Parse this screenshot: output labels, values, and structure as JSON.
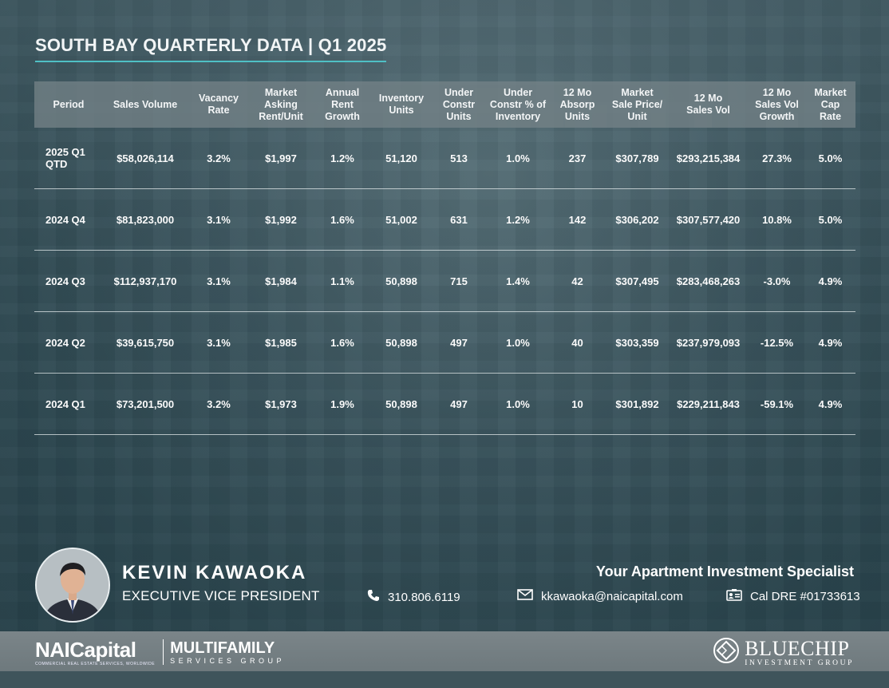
{
  "title": "SOUTH BAY QUARTERLY DATA | Q1 2025",
  "table": {
    "headers": [
      [
        "Period"
      ],
      [
        "Sales Volume"
      ],
      [
        "Vacancy",
        "Rate"
      ],
      [
        "Market",
        "Asking",
        "Rent/Unit"
      ],
      [
        "Annual",
        "Rent",
        "Growth"
      ],
      [
        "Inventory",
        "Units"
      ],
      [
        "Under",
        "Constr",
        "Units"
      ],
      [
        "Under",
        "Constr % of",
        "Inventory"
      ],
      [
        "12 Mo",
        "Absorp",
        "Units"
      ],
      [
        "Market",
        "Sale Price/",
        "Unit"
      ],
      [
        "12 Mo",
        "Sales Vol"
      ],
      [
        "12 Mo",
        "Sales Vol",
        "Growth"
      ],
      [
        "Market",
        "Cap",
        "Rate"
      ]
    ],
    "rows": [
      [
        [
          "2025 Q1",
          "QTD"
        ],
        "$58,026,114",
        "3.2%",
        "$1,997",
        "1.2%",
        "51,120",
        "513",
        "1.0%",
        "237",
        "$307,789",
        "$293,215,384",
        "27.3%",
        "5.0%"
      ],
      [
        [
          "2024 Q4"
        ],
        "$81,823,000",
        "3.1%",
        "$1,992",
        "1.6%",
        "51,002",
        "631",
        "1.2%",
        "142",
        "$306,202",
        "$307,577,420",
        "10.8%",
        "5.0%"
      ],
      [
        [
          "2024 Q3"
        ],
        "$112,937,170",
        "3.1%",
        "$1,984",
        "1.1%",
        "50,898",
        "715",
        "1.4%",
        "42",
        "$307,495",
        "$283,468,263",
        "-3.0%",
        "4.9%"
      ],
      [
        [
          "2024 Q2"
        ],
        "$39,615,750",
        "3.1%",
        "$1,985",
        "1.6%",
        "50,898",
        "497",
        "1.0%",
        "40",
        "$303,359",
        "$237,979,093",
        "-12.5%",
        "4.9%"
      ],
      [
        [
          "2024 Q1"
        ],
        "$73,201,500",
        "3.2%",
        "$1,973",
        "1.9%",
        "50,898",
        "497",
        "1.0%",
        "10",
        "$301,892",
        "$229,211,843",
        "-59.1%",
        "4.9%"
      ]
    ]
  },
  "agent": {
    "name": "KEVIN KAWAOKA",
    "title": "EXECUTIVE VICE PRESIDENT",
    "tagline": "Your Apartment Investment Specialist",
    "phone": "310.806.6119",
    "email": "kkawaoka@naicapital.com",
    "license": "Cal DRE #01733613"
  },
  "icons": {
    "phone": "phone-icon",
    "email": "envelope-icon",
    "license": "id-card-icon"
  },
  "footer": {
    "nai_logo": "NAICapital",
    "nai_tagline": "COMMERCIAL REAL ESTATE SERVICES, WORLDWIDE",
    "multifamily": "MULTIFAMILY",
    "multifamily_sub": "SERVICES GROUP",
    "bluechip": "BLUECHIP",
    "bluechip_sub": "INVESTMENT GROUP"
  },
  "colors": {
    "accent": "#4fc0c5",
    "header_bg": "#73828a",
    "footer_bg": "#737e82"
  }
}
